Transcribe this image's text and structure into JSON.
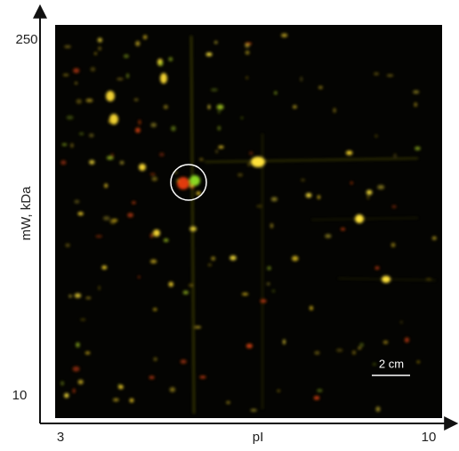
{
  "figure": {
    "y_axis": {
      "label": "mW, kDa",
      "top": "250",
      "bottom": "10"
    },
    "x_axis": {
      "label": "pI",
      "left": "3",
      "right": "10"
    },
    "scale_bar": "2 cm"
  }
}
